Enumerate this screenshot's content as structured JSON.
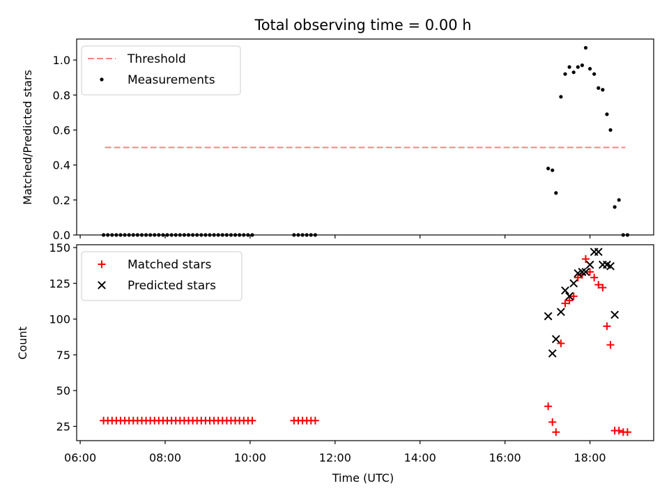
{
  "chart_data": {
    "type": "scatter",
    "title": "Total observing time = 0.00 h",
    "xlabel": "Time (UTC)",
    "x_ticks": [
      "06:00",
      "08:00",
      "10:00",
      "12:00",
      "14:00",
      "16:00",
      "18:00"
    ],
    "panels": [
      {
        "ylabel": "Matched/Predicted stars",
        "ylim": [
          0,
          1.12
        ],
        "y_ticks": [
          "0.0",
          "0.2",
          "0.4",
          "0.6",
          "0.8",
          "1.0"
        ],
        "legend_placement": "top-left",
        "threshold": {
          "name": "Threshold",
          "value": 0.5,
          "x_range": [
            "06:35",
            "18:50"
          ],
          "color": "#ff8080"
        },
        "series": [
          {
            "name": "Measurements",
            "marker": "dot",
            "color": "#000000",
            "x": [
              "06:33",
              "06:39",
              "06:45",
              "06:51",
              "06:57",
              "07:03",
              "07:09",
              "07:15",
              "07:21",
              "07:27",
              "07:33",
              "07:39",
              "07:45",
              "07:51",
              "07:57",
              "08:03",
              "08:09",
              "08:15",
              "08:21",
              "08:27",
              "08:33",
              "08:39",
              "08:45",
              "08:51",
              "08:57",
              "09:03",
              "09:09",
              "09:15",
              "09:21",
              "09:27",
              "09:33",
              "09:39",
              "09:45",
              "09:51",
              "09:57",
              "10:03",
              "11:02",
              "11:08",
              "11:14",
              "11:20",
              "11:26",
              "11:32",
              "17:01",
              "17:07",
              "17:12",
              "17:19",
              "17:25",
              "17:31",
              "17:37",
              "17:43",
              "17:49",
              "17:54",
              "18:00",
              "18:06",
              "18:12",
              "18:18",
              "18:24",
              "18:29",
              "18:35",
              "18:41",
              "18:47",
              "18:53"
            ],
            "y": [
              0,
              0,
              0,
              0,
              0,
              0,
              0,
              0,
              0,
              0,
              0,
              0,
              0,
              0,
              0,
              0,
              0,
              0,
              0,
              0,
              0,
              0,
              0,
              0,
              0,
              0,
              0,
              0,
              0,
              0,
              0,
              0,
              0,
              0,
              0,
              0,
              0,
              0,
              0,
              0,
              0,
              0,
              0.38,
              0.37,
              0.24,
              0.79,
              0.92,
              0.96,
              0.93,
              0.96,
              0.97,
              1.07,
              0.95,
              0.92,
              0.84,
              0.83,
              0.69,
              0.6,
              0.16,
              0.2,
              0,
              0
            ]
          }
        ]
      },
      {
        "ylabel": "Count",
        "ylim": [
          15,
          152
        ],
        "y_ticks": [
          "25",
          "50",
          "75",
          "100",
          "125",
          "150"
        ],
        "legend_placement": "top-left",
        "series": [
          {
            "name": "Matched stars",
            "marker": "plus",
            "color": "#ff0000",
            "x": [
              "06:33",
              "06:39",
              "06:45",
              "06:51",
              "06:57",
              "07:03",
              "07:09",
              "07:15",
              "07:21",
              "07:27",
              "07:33",
              "07:39",
              "07:45",
              "07:51",
              "07:57",
              "08:03",
              "08:09",
              "08:15",
              "08:21",
              "08:27",
              "08:33",
              "08:39",
              "08:45",
              "08:51",
              "08:57",
              "09:03",
              "09:09",
              "09:15",
              "09:21",
              "09:27",
              "09:33",
              "09:39",
              "09:45",
              "09:51",
              "09:57",
              "10:03",
              "11:02",
              "11:08",
              "11:14",
              "11:20",
              "11:26",
              "11:32",
              "17:01",
              "17:07",
              "17:12",
              "17:19",
              "17:25",
              "17:31",
              "17:37",
              "17:43",
              "17:49",
              "17:54",
              "18:00",
              "18:06",
              "18:12",
              "18:18",
              "18:24",
              "18:29",
              "18:35",
              "18:41",
              "18:47",
              "18:53"
            ],
            "y": [
              29,
              29,
              29,
              29,
              29,
              29,
              29,
              29,
              29,
              29,
              29,
              29,
              29,
              29,
              29,
              29,
              29,
              29,
              29,
              29,
              29,
              29,
              29,
              29,
              29,
              29,
              29,
              29,
              29,
              29,
              29,
              29,
              29,
              29,
              29,
              29,
              29,
              29,
              29,
              29,
              29,
              29,
              39,
              28,
              21,
              83,
              111,
              113,
              116,
              129,
              131,
              142,
              133,
              129,
              124,
              122,
              95,
              82,
              22,
              22,
              21,
              21
            ]
          },
          {
            "name": "Predicted stars",
            "marker": "x",
            "color": "#000000",
            "x": [
              "17:01",
              "17:07",
              "17:12",
              "17:19",
              "17:25",
              "17:31",
              "17:37",
              "17:43",
              "17:49",
              "17:54",
              "18:00",
              "18:06",
              "18:12",
              "18:18",
              "18:24",
              "18:29",
              "18:35"
            ],
            "y": [
              102,
              76,
              86,
              105,
              120,
              116,
              125,
              132,
              133,
              133,
              138,
              147,
              147,
              138,
              138,
              137,
              103
            ]
          }
        ]
      }
    ]
  }
}
